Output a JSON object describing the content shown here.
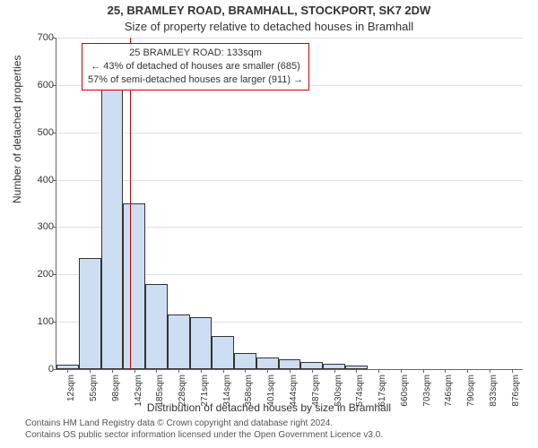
{
  "titles": {
    "main": "25, BRAMLEY ROAD, BRAMHALL, STOCKPORT, SK7 2DW",
    "sub": "Size of property relative to detached houses in Bramhall"
  },
  "axes": {
    "ylabel": "Number of detached properties",
    "xlabel": "Distribution of detached houses by size in Bramhall",
    "ylim": [
      0,
      700
    ],
    "ytick_step": 100,
    "yticks": [
      0,
      100,
      200,
      300,
      400,
      500,
      600,
      700
    ],
    "xticks": [
      "12sqm",
      "55sqm",
      "98sqm",
      "142sqm",
      "185sqm",
      "228sqm",
      "271sqm",
      "314sqm",
      "358sqm",
      "401sqm",
      "444sqm",
      "487sqm",
      "530sqm",
      "574sqm",
      "617sqm",
      "660sqm",
      "703sqm",
      "746sqm",
      "790sqm",
      "833sqm",
      "876sqm"
    ]
  },
  "chart": {
    "type": "histogram",
    "bar_color": "#cdddf2",
    "bar_border_color": "#333333",
    "grid_color": "#e0e0e0",
    "background_color": "#ffffff",
    "reference_line_color": "#cc0000",
    "reference_line_x_index": 2.8,
    "values": [
      10,
      235,
      590,
      350,
      180,
      115,
      110,
      70,
      35,
      25,
      20,
      15,
      12,
      8,
      0,
      0,
      0,
      0,
      0,
      0,
      0
    ],
    "bar_width_ratio": 1.0
  },
  "callout": {
    "line1": "25 BRAMLEY ROAD: 133sqm",
    "line2": "← 43% of detached of houses are smaller (685)",
    "line3": "57% of semi-detached houses are larger (911) →",
    "border_color": "#cc0000",
    "background": "#ffffff",
    "fontsize": 11
  },
  "footer": {
    "line1": "Contains HM Land Registry data © Crown copyright and database right 2024.",
    "line2": "Contains OS public sector information licensed under the Open Government Licence v3.0."
  },
  "style": {
    "title_main_fontsize": 13,
    "title_sub_fontsize": 13,
    "axis_label_fontsize": 12,
    "tick_fontsize": 11,
    "xtick_fontsize": 10,
    "footer_fontsize": 10
  }
}
